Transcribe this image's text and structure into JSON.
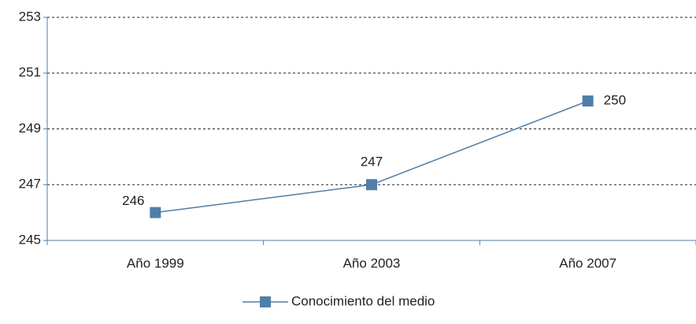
{
  "chart_data": {
    "type": "line",
    "categories": [
      "Año 1999",
      "Año 2003",
      "Año 2007"
    ],
    "series": [
      {
        "name": "Conocimiento del medio",
        "color": "#4f7fa8",
        "values": [
          246,
          247,
          250
        ]
      }
    ],
    "ylim": [
      245,
      253
    ],
    "yticks": [
      245,
      247,
      249,
      251,
      253
    ],
    "grid": true,
    "legend": "bottom"
  }
}
